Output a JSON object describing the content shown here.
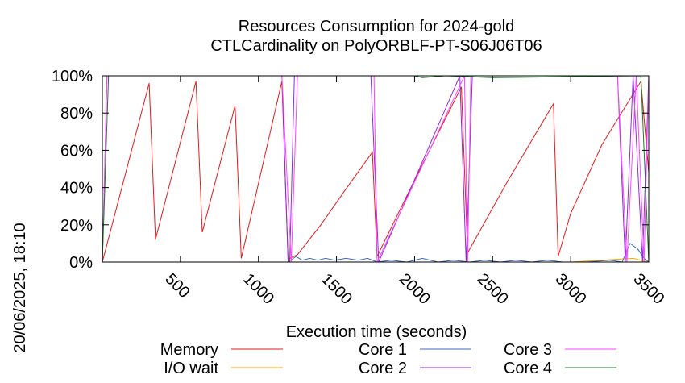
{
  "chart_data": {
    "type": "line",
    "title": "Resources Consumption for 2024-gold",
    "subtitle": "CTLCardinality on PolyORBLF-PT-S06J06T06",
    "xlabel": "Execution time (seconds)",
    "ylabel": "",
    "side_label": "20/06/2025, 18:10",
    "xlim": [
      0,
      3500
    ],
    "ylim": [
      0,
      100
    ],
    "x_ticks": [
      500,
      1000,
      1500,
      2000,
      2500,
      3000,
      3500
    ],
    "y_ticks": [
      0,
      20,
      40,
      60,
      80,
      100
    ],
    "y_tick_labels": [
      "0%",
      "20%",
      "40%",
      "60%",
      "80%",
      "100%"
    ],
    "grid": false,
    "legend_placement": "bottom",
    "series": [
      {
        "name": "Memory",
        "color": "#e41a1c",
        "points": [
          [
            0,
            0
          ],
          [
            300,
            96
          ],
          [
            340,
            12
          ],
          [
            600,
            97
          ],
          [
            640,
            16
          ],
          [
            850,
            84
          ],
          [
            890,
            2
          ],
          [
            1150,
            97
          ],
          [
            1190,
            1
          ],
          [
            1200,
            2
          ],
          [
            1250,
            4
          ],
          [
            1400,
            20
          ],
          [
            1550,
            38
          ],
          [
            1730,
            59
          ],
          [
            1760,
            3
          ],
          [
            2000,
            44
          ],
          [
            2300,
            94
          ],
          [
            2340,
            5
          ],
          [
            2600,
            44
          ],
          [
            2890,
            85
          ],
          [
            2920,
            3
          ],
          [
            3000,
            26
          ],
          [
            3200,
            63
          ],
          [
            3450,
            97
          ],
          [
            3500,
            48
          ]
        ]
      },
      {
        "name": "I/O wait",
        "color": "#ffa500",
        "points": [
          [
            0,
            0
          ],
          [
            1200,
            0
          ],
          [
            1400,
            0
          ],
          [
            2000,
            0
          ],
          [
            2500,
            0
          ],
          [
            3000,
            0
          ],
          [
            3400,
            2
          ],
          [
            3500,
            0
          ]
        ]
      },
      {
        "name": "Core 1",
        "color": "#3d6ab8",
        "points": [
          [
            0,
            0
          ],
          [
            1190,
            0
          ],
          [
            1240,
            3
          ],
          [
            1280,
            1
          ],
          [
            1330,
            2
          ],
          [
            1380,
            1
          ],
          [
            1430,
            2
          ],
          [
            1490,
            1
          ],
          [
            1560,
            2
          ],
          [
            1640,
            1
          ],
          [
            1700,
            2
          ],
          [
            1760,
            0
          ],
          [
            1850,
            1
          ],
          [
            1950,
            0
          ],
          [
            2050,
            2
          ],
          [
            2150,
            0
          ],
          [
            2250,
            1
          ],
          [
            2350,
            0
          ],
          [
            2450,
            1
          ],
          [
            2550,
            0
          ],
          [
            2650,
            1
          ],
          [
            2750,
            0
          ],
          [
            2850,
            1
          ],
          [
            2950,
            0
          ],
          [
            3100,
            0
          ],
          [
            3250,
            1
          ],
          [
            3330,
            0
          ],
          [
            3380,
            10
          ],
          [
            3430,
            7
          ],
          [
            3470,
            2
          ],
          [
            3500,
            0
          ]
        ]
      },
      {
        "name": "Core 2",
        "color": "#8a2be2",
        "points": [
          [
            0,
            0
          ],
          [
            30,
            100
          ],
          [
            1150,
            100
          ],
          [
            1190,
            0
          ],
          [
            1200,
            0
          ],
          [
            1230,
            100
          ],
          [
            1720,
            100
          ],
          [
            1770,
            0
          ],
          [
            2290,
            100
          ],
          [
            2330,
            0
          ],
          [
            2370,
            100
          ],
          [
            3300,
            100
          ],
          [
            3350,
            0
          ],
          [
            3400,
            100
          ],
          [
            3460,
            0
          ],
          [
            3500,
            100
          ]
        ]
      },
      {
        "name": "Core 3",
        "color": "#ff44ff",
        "points": [
          [
            0,
            0
          ],
          [
            30,
            100
          ],
          [
            1150,
            100
          ],
          [
            1210,
            0
          ],
          [
            1250,
            100
          ],
          [
            1740,
            100
          ],
          [
            1760,
            0
          ],
          [
            2320,
            100
          ],
          [
            2340,
            0
          ],
          [
            2360,
            100
          ],
          [
            3300,
            100
          ],
          [
            3360,
            0
          ],
          [
            3420,
            100
          ],
          [
            3470,
            0
          ],
          [
            3500,
            100
          ]
        ]
      },
      {
        "name": "Core 4",
        "color": "#1e7b2e",
        "points": [
          [
            0,
            0
          ],
          [
            40,
            100
          ],
          [
            1200,
            100
          ],
          [
            2000,
            100
          ],
          [
            2050,
            99
          ],
          [
            2200,
            100
          ],
          [
            2500,
            99
          ],
          [
            3450,
            100
          ],
          [
            3500,
            0
          ]
        ]
      }
    ]
  }
}
